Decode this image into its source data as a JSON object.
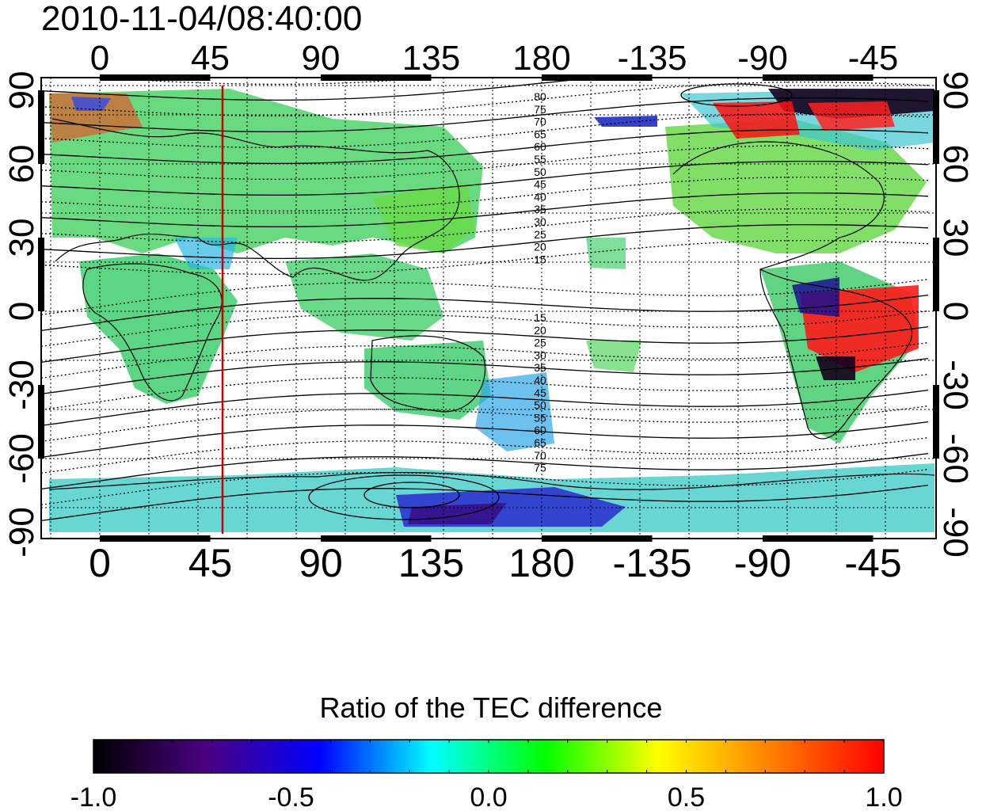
{
  "title": "2010-11-04/08:40:00",
  "lon_ticks": [
    "0",
    "45",
    "90",
    "135",
    "180",
    "-135",
    "-90",
    "-45"
  ],
  "lat_ticks": [
    "90",
    "60",
    "30",
    "0",
    "-30",
    "-60",
    "-90"
  ],
  "contour_labels_north": [
    "80",
    "75",
    "70",
    "65",
    "60",
    "55",
    "50",
    "45",
    "40",
    "35",
    "30",
    "25",
    "20",
    "15"
  ],
  "contour_labels_south": [
    "15",
    "20",
    "25",
    "30",
    "35",
    "40",
    "45",
    "50",
    "55",
    "60",
    "65",
    "70",
    "75"
  ],
  "colorbar": {
    "title": "Ratio of the TEC difference",
    "tick_labels": [
      "-1.0",
      "-0.5",
      "0.0",
      "0.5",
      "1.0"
    ],
    "colors": [
      "#000000",
      "#4b0082",
      "#0000ff",
      "#00ffff",
      "#00ff00",
      "#ffff00",
      "#ff8000",
      "#ff0000"
    ]
  },
  "marker": {
    "label": "meridian-marker",
    "lon": 50,
    "color": "#cc0000"
  }
}
